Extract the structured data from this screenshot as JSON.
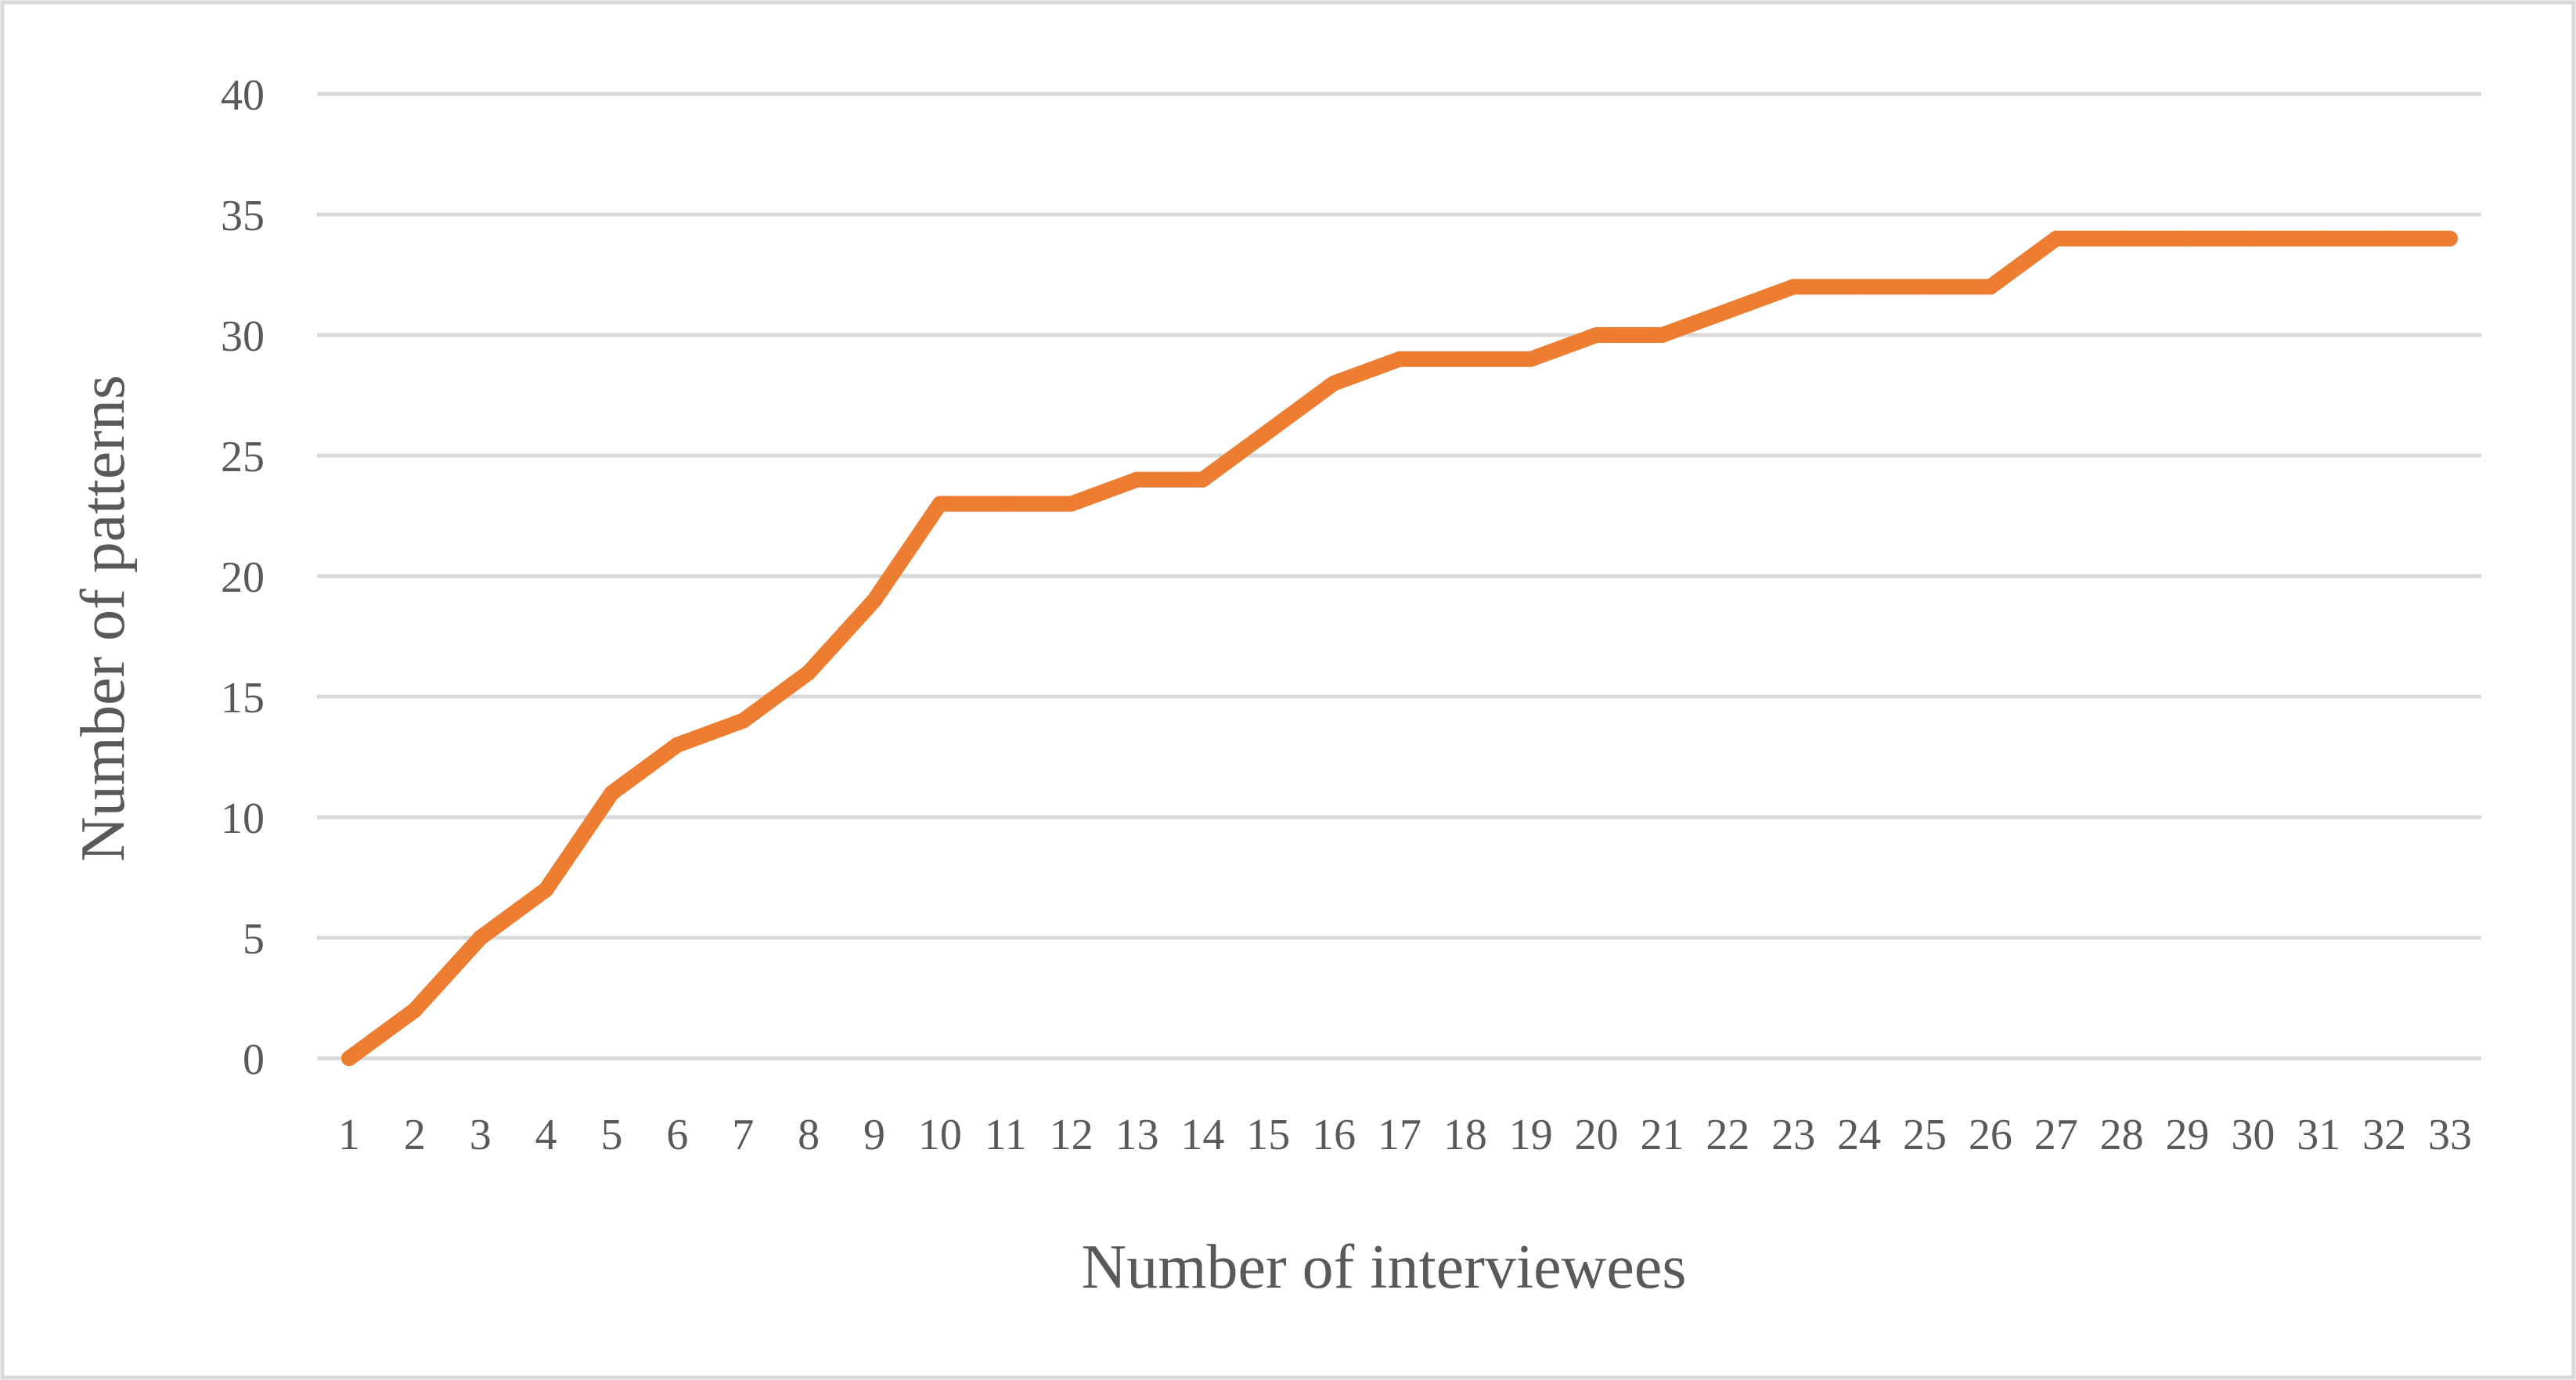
{
  "chart_data": {
    "type": "line",
    "title": "",
    "xlabel": "Number of interviewees",
    "ylabel": "Number of patterns",
    "x": [
      1,
      2,
      3,
      4,
      5,
      6,
      7,
      8,
      9,
      10,
      11,
      12,
      13,
      14,
      15,
      16,
      17,
      18,
      19,
      20,
      21,
      22,
      23,
      24,
      25,
      26,
      27,
      28,
      29,
      30,
      31,
      32,
      33
    ],
    "x_tick_labels": [
      "1",
      "2",
      "3",
      "4",
      "5",
      "6",
      "7",
      "8",
      "9",
      "10",
      "11",
      "12",
      "13",
      "14",
      "15",
      "16",
      "17",
      "18",
      "19",
      "20",
      "21",
      "22",
      "23",
      "24",
      "25",
      "26",
      "27",
      "28",
      "29",
      "30",
      "31",
      "32",
      "33"
    ],
    "series": [
      {
        "values": [
          0,
          2,
          5,
          7,
          11,
          13,
          14,
          16,
          19,
          23,
          23,
          23,
          24,
          24,
          26,
          28,
          29,
          29,
          29,
          30,
          30,
          31,
          32,
          32,
          32,
          32,
          34,
          34,
          34,
          34,
          34,
          34,
          34
        ],
        "color": "#ED7D31"
      }
    ],
    "ylim": [
      0,
      40
    ],
    "y_ticks": [
      0,
      5,
      10,
      15,
      20,
      25,
      30,
      35,
      40
    ],
    "y_tick_labels": [
      "0",
      "5",
      "10",
      "15",
      "20",
      "25",
      "30",
      "35",
      "40"
    ],
    "grid": "horizontal",
    "legend": "none",
    "colors": {
      "line": "#ED7D31",
      "gridline": "#D9D9D9",
      "text": "#595959",
      "frame": "#D9D9D9"
    }
  }
}
